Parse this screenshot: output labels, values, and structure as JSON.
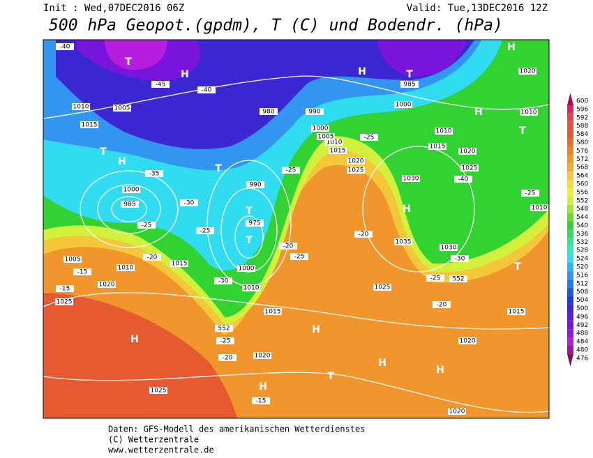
{
  "header": {
    "init": "Init : Wed,07DEC2016 06Z",
    "valid": "Valid: Tue,13DEC2016 12Z",
    "title": "500 hPa Geopot.(gpdm), T (C) und Bodendr. (hPa)"
  },
  "colorbar": {
    "levels": [
      600,
      596,
      592,
      588,
      584,
      580,
      576,
      572,
      568,
      564,
      560,
      556,
      552,
      548,
      544,
      540,
      536,
      532,
      528,
      524,
      520,
      516,
      512,
      508,
      504,
      500,
      496,
      492,
      488,
      484,
      480,
      476
    ],
    "colors": [
      "#b40050",
      "#d2285a",
      "#e64646",
      "#e6503c",
      "#e65a32",
      "#eb6e28",
      "#f08228",
      "#f0962d",
      "#f5aa32",
      "#f5c83c",
      "#f5dc3c",
      "#f0f03c",
      "#d2f03c",
      "#a0e632",
      "#64dc32",
      "#32d232",
      "#32dc64",
      "#32e696",
      "#32e6c8",
      "#32dcf0",
      "#32b4f0",
      "#3296f0",
      "#2878f0",
      "#1e5adc",
      "#1e3cd2",
      "#3c28d2",
      "#5a1edc",
      "#7814dc",
      "#9614dc",
      "#b41edc",
      "#a0149b",
      "#78145a"
    ]
  },
  "map_labels": [
    "H",
    "H",
    "H",
    "H",
    "H",
    "H",
    "H",
    "H",
    "H",
    "H",
    "H",
    "T",
    "T",
    "T",
    "T",
    "T",
    "T",
    "T",
    "T",
    "T",
    "1010",
    "1005",
    "1015",
    "1000",
    "985",
    "1005",
    "1010",
    "1015",
    "1020",
    "1025",
    "1025",
    "1020",
    "1015",
    "1010",
    "1000",
    "975",
    "990",
    "980",
    "1035",
    "1030",
    "1025",
    "1020",
    "1015",
    "1020",
    "1010",
    "1020",
    "1010",
    "1025",
    "1020",
    "1015",
    "1010",
    "1000",
    "985",
    "1030",
    "1020",
    "1025",
    "1015",
    "1010",
    "1005",
    "1000",
    "990",
    "-40",
    "-45",
    "-40",
    "-35",
    "-30",
    "-25",
    "-25",
    "-20",
    "-15",
    "-15",
    "-30",
    "-25",
    "-20",
    "-25",
    "-25",
    "-20",
    "-20",
    "-25",
    "-25",
    "-20",
    "-30",
    "-40",
    "-25",
    "-15",
    "552",
    "552"
  ],
  "footer": {
    "line1": "Daten: GFS-Modell des amerikanischen Wetterdienstes",
    "line2": "(C) Wetterzentrale",
    "line3": "www.wetterzentrale.de"
  }
}
